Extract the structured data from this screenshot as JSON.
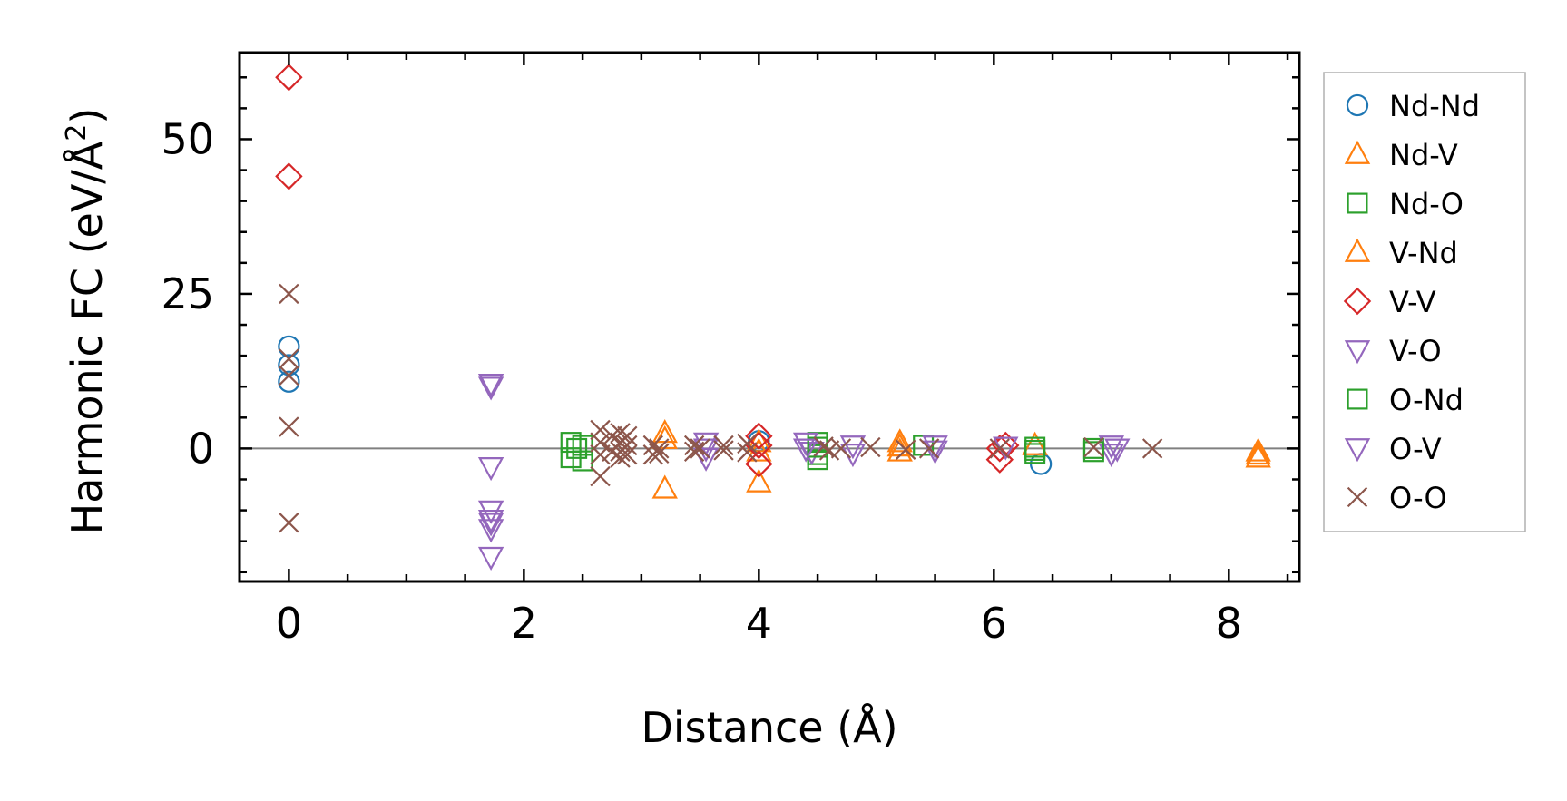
{
  "chart_data": {
    "type": "scatter",
    "title": "",
    "xlabel": "Distance (Å)",
    "ylabel_main": "Harmonic FC (eV/Å",
    "ylabel_sup": "2",
    "ylabel_close": ")",
    "xlim": [
      -0.42,
      8.6
    ],
    "ylim": [
      -21.5,
      64
    ],
    "xticks": [
      0,
      2,
      4,
      6,
      8
    ],
    "yticks": [
      0,
      25,
      50
    ],
    "xtick_labels": [
      "0",
      "2",
      "4",
      "6",
      "8"
    ],
    "ytick_labels": [
      "0",
      "25",
      "50"
    ],
    "zero_line": true,
    "legend_position": "outside-right",
    "series": [
      {
        "name": "Nd-Nd",
        "marker": "circle",
        "color": "#1f77b4",
        "points": [
          [
            0,
            16.5
          ],
          [
            0,
            10.8
          ],
          [
            0,
            13.5
          ],
          [
            4.0,
            1.2
          ],
          [
            6.4,
            -2.5
          ]
        ]
      },
      {
        "name": "Nd-V",
        "marker": "triangle-up",
        "color": "#ff7f0e",
        "points": [
          [
            3.2,
            2.5
          ],
          [
            3.2,
            -6.5
          ],
          [
            4.0,
            -5.5
          ],
          [
            4.0,
            1.0
          ],
          [
            5.2,
            1.0
          ],
          [
            5.2,
            -0.5
          ],
          [
            6.35,
            0.5
          ],
          [
            8.25,
            -0.5
          ],
          [
            8.25,
            -1.5
          ]
        ]
      },
      {
        "name": "Nd-O",
        "marker": "square",
        "color": "#2ca02c",
        "points": [
          [
            2.4,
            1.0
          ],
          [
            2.4,
            -1.5
          ],
          [
            2.5,
            0.5
          ],
          [
            2.5,
            -2.0
          ],
          [
            4.5,
            1.0
          ],
          [
            4.5,
            -1.0
          ],
          [
            4.5,
            -1.8
          ],
          [
            5.4,
            0.5
          ],
          [
            6.35,
            0.2
          ],
          [
            6.35,
            -0.8
          ],
          [
            6.85,
            0.0
          ]
        ]
      },
      {
        "name": "V-Nd",
        "marker": "triangle-up",
        "color": "#ff7f0e",
        "points": [
          [
            3.2,
            1.5
          ],
          [
            4.0,
            -0.5
          ],
          [
            5.2,
            0.3
          ],
          [
            8.25,
            -1.0
          ]
        ]
      },
      {
        "name": "V-V",
        "marker": "diamond",
        "color": "#d62728",
        "points": [
          [
            0,
            60.0
          ],
          [
            0,
            44.0
          ],
          [
            4.0,
            2.0
          ],
          [
            4.0,
            -2.5
          ],
          [
            4.0,
            0.5
          ],
          [
            6.05,
            -1.8
          ],
          [
            6.05,
            0.0
          ],
          [
            6.1,
            0.5
          ]
        ]
      },
      {
        "name": "V-O",
        "marker": "triangle-down",
        "color": "#9467bd",
        "points": [
          [
            1.72,
            10.5
          ],
          [
            1.72,
            10.0
          ],
          [
            1.72,
            -3.0
          ],
          [
            1.72,
            -10.0
          ],
          [
            1.72,
            -11.5
          ],
          [
            1.72,
            -13.0
          ],
          [
            1.72,
            -17.5
          ],
          [
            3.55,
            1.0
          ],
          [
            3.55,
            -1.5
          ],
          [
            4.4,
            1.0
          ],
          [
            4.45,
            -0.5
          ],
          [
            4.8,
            0.5
          ],
          [
            4.8,
            -0.8
          ],
          [
            5.5,
            0.5
          ],
          [
            6.1,
            0.3
          ],
          [
            7.0,
            0.5
          ],
          [
            7.0,
            -0.8
          ]
        ]
      },
      {
        "name": "O-Nd",
        "marker": "square",
        "color": "#2ca02c",
        "points": [
          [
            2.45,
            0.0
          ],
          [
            4.5,
            0.2
          ],
          [
            6.35,
            -0.3
          ],
          [
            6.85,
            -0.5
          ]
        ]
      },
      {
        "name": "O-V",
        "marker": "triangle-down",
        "color": "#9467bd",
        "points": [
          [
            1.72,
            -12.0
          ],
          [
            3.55,
            0.0
          ],
          [
            4.4,
            0.0
          ],
          [
            5.5,
            -0.3
          ],
          [
            7.05,
            0.0
          ]
        ]
      },
      {
        "name": "O-O",
        "marker": "x",
        "color": "#8c564b",
        "points": [
          [
            0,
            25.0
          ],
          [
            0,
            14.5
          ],
          [
            0,
            11.8
          ],
          [
            0,
            3.5
          ],
          [
            0,
            -12.0
          ],
          [
            2.65,
            3.0
          ],
          [
            2.65,
            1.0
          ],
          [
            2.65,
            -1.0
          ],
          [
            2.65,
            -4.5
          ],
          [
            2.75,
            2.0
          ],
          [
            2.75,
            -0.5
          ],
          [
            2.82,
            2.5
          ],
          [
            2.82,
            1.0
          ],
          [
            2.82,
            -0.5
          ],
          [
            2.82,
            -1.5
          ],
          [
            2.88,
            2.0
          ],
          [
            2.88,
            0.5
          ],
          [
            2.88,
            -1.0
          ],
          [
            3.1,
            0.5
          ],
          [
            3.1,
            -1.0
          ],
          [
            3.15,
            0.0
          ],
          [
            3.15,
            -0.8
          ],
          [
            3.45,
            0.5
          ],
          [
            3.45,
            -0.5
          ],
          [
            3.5,
            0.0
          ],
          [
            3.7,
            0.5
          ],
          [
            3.7,
            -0.3
          ],
          [
            3.9,
            0.8
          ],
          [
            3.9,
            -0.6
          ],
          [
            4.55,
            0.3
          ],
          [
            4.6,
            -0.3
          ],
          [
            4.7,
            0.0
          ],
          [
            4.95,
            0.2
          ],
          [
            5.25,
            -0.2
          ],
          [
            5.45,
            0.0
          ],
          [
            6.05,
            0.0
          ],
          [
            6.85,
            0.2
          ],
          [
            7.35,
            0.0
          ]
        ]
      }
    ]
  }
}
